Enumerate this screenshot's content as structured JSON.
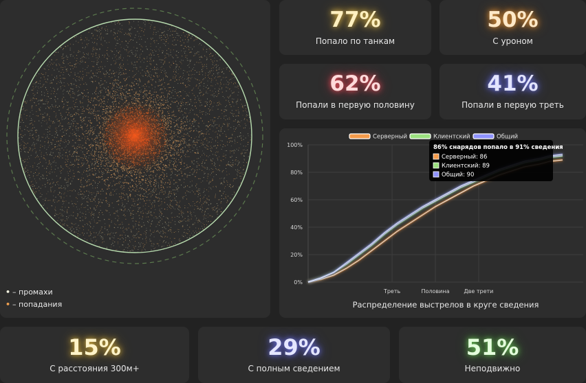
{
  "stats": {
    "tanks": {
      "value": "77%",
      "label": "Попало по танкам",
      "color": "#ffe9b0",
      "glow": "#d9b44a"
    },
    "damage": {
      "value": "50%",
      "label": "С уроном",
      "color": "#ffe6c4",
      "glow": "#e0953b"
    },
    "first_half": {
      "value": "62%",
      "label": "Попали в первую половину",
      "color": "#ffd6d6",
      "glow": "#e0505a"
    },
    "first_third": {
      "value": "41%",
      "label": "Попали в первую треть",
      "color": "#dde0ff",
      "glow": "#7177e6"
    },
    "distance": {
      "value": "15%",
      "label": "С расстояния 300м+",
      "color": "#fff1c4",
      "glow": "#d6b040"
    },
    "full_aim": {
      "value": "29%",
      "label": "С полным сведением",
      "color": "#e2e4ff",
      "glow": "#6f74e0"
    },
    "stationary": {
      "value": "51%",
      "label": "Неподвижно",
      "color": "#e2ffd8",
      "glow": "#6cc058"
    }
  },
  "scatter": {
    "legend": [
      {
        "symbol": "•",
        "text": "– промахи",
        "color": "#f3f3e0"
      },
      {
        "symbol": "•",
        "text": "– попадания",
        "color": "#f0a050"
      }
    ],
    "ring_color": "#b9ddb0",
    "hit_color": "#e85a20",
    "miss_color": "#c9c6a0"
  },
  "chart_data": {
    "type": "line",
    "title": "Распределение выстрелов в круге сведения",
    "xlabel": "",
    "ylabel": "",
    "ylim": [
      0,
      100
    ],
    "y_ticks": [
      "0%",
      "20%",
      "40%",
      "60%",
      "80%",
      "100%"
    ],
    "x_ticks": [
      {
        "at": 33,
        "label": "Треть"
      },
      {
        "at": 50,
        "label": "Половина"
      },
      {
        "at": 67,
        "label": "Две трети"
      }
    ],
    "xlim": [
      0,
      100
    ],
    "legend_placement": "top",
    "x": [
      0,
      5,
      10,
      15,
      20,
      25,
      30,
      35,
      40,
      45,
      50,
      55,
      60,
      65,
      70,
      75,
      80,
      85,
      91,
      95,
      100
    ],
    "series": [
      {
        "name": "Серверный",
        "color": "#f39a4a",
        "values": [
          0,
          2,
          5,
          10,
          16,
          23,
          30,
          37,
          43,
          49,
          55,
          60,
          65,
          70,
          74,
          78,
          81,
          84,
          86,
          88,
          89
        ]
      },
      {
        "name": "Клиентский",
        "color": "#9be07f",
        "values": [
          0,
          3,
          7,
          13,
          20,
          27,
          35,
          42,
          48,
          54,
          59,
          64,
          69,
          73,
          77,
          81,
          84,
          87,
          89,
          91,
          92
        ]
      },
      {
        "name": "Общий",
        "color": "#8f93ff",
        "values": [
          0,
          3,
          7,
          14,
          21,
          28,
          36,
          43,
          49,
          55,
          60,
          65,
          70,
          74,
          78,
          82,
          85,
          88,
          90,
          92,
          93
        ]
      }
    ],
    "tooltip": {
      "title": "86% снарядов попало в 91% сведения",
      "at_x": 91,
      "rows": [
        {
          "text": "Серверный: 86",
          "color": "#f39a4a"
        },
        {
          "text": "Клиентский: 89",
          "color": "#9be07f"
        },
        {
          "text": "Общий: 90",
          "color": "#8f93ff"
        }
      ]
    }
  }
}
